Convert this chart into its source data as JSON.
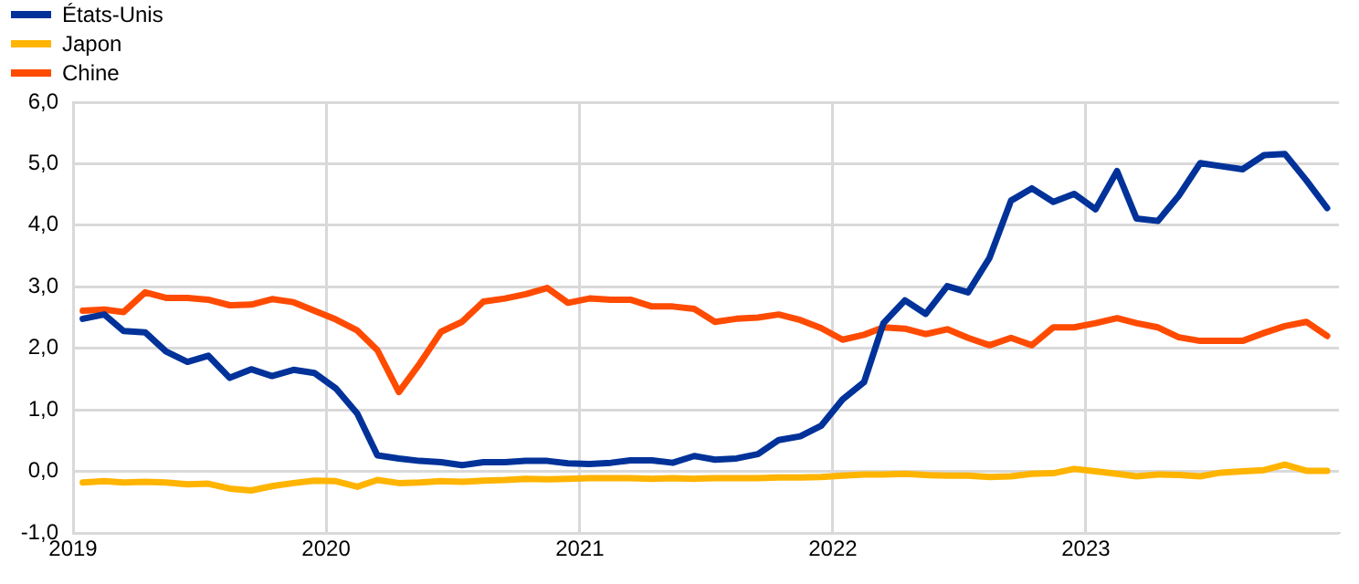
{
  "chart_data": {
    "type": "line",
    "x": [
      "2019-01-15",
      "2019-02-15",
      "2019-03-15",
      "2019-04-15",
      "2019-05-15",
      "2019-06-15",
      "2019-07-15",
      "2019-08-15",
      "2019-09-15",
      "2019-10-15",
      "2019-11-15",
      "2019-12-15",
      "2020-01-15",
      "2020-02-15",
      "2020-03-15",
      "2020-04-15",
      "2020-05-15",
      "2020-06-15",
      "2020-07-15",
      "2020-08-15",
      "2020-09-15",
      "2020-10-15",
      "2020-11-15",
      "2020-12-15",
      "2021-01-15",
      "2021-02-15",
      "2021-03-15",
      "2021-04-15",
      "2021-05-15",
      "2021-06-15",
      "2021-07-15",
      "2021-08-15",
      "2021-09-15",
      "2021-10-15",
      "2021-11-15",
      "2021-12-15",
      "2022-01-15",
      "2022-02-15",
      "2022-03-15",
      "2022-04-15",
      "2022-05-15",
      "2022-06-15",
      "2022-07-15",
      "2022-08-15",
      "2022-09-15",
      "2022-10-15",
      "2022-11-15",
      "2022-12-15",
      "2023-01-15",
      "2023-02-15",
      "2023-03-15",
      "2023-04-15",
      "2023-05-15",
      "2023-06-15",
      "2023-07-15",
      "2023-08-15",
      "2023-09-15",
      "2023-10-15",
      "2023-11-15",
      "2023-12-15"
    ],
    "series": [
      {
        "name": "États-Unis",
        "color": "#003299",
        "values": [
          2.48,
          2.55,
          2.28,
          2.26,
          1.95,
          1.78,
          1.88,
          1.52,
          1.66,
          1.55,
          1.65,
          1.6,
          1.35,
          0.94,
          0.26,
          0.21,
          0.17,
          0.15,
          0.1,
          0.15,
          0.15,
          0.17,
          0.17,
          0.13,
          0.12,
          0.14,
          0.18,
          0.18,
          0.14,
          0.25,
          0.19,
          0.21,
          0.28,
          0.51,
          0.57,
          0.74,
          1.17,
          1.45,
          2.41,
          2.78,
          2.56,
          3.01,
          2.91,
          3.47,
          4.4,
          4.6,
          4.38,
          4.51,
          4.26,
          4.88,
          4.11,
          4.07,
          4.48,
          5.01,
          4.96,
          4.91,
          5.14,
          5.16,
          4.73,
          4.28
        ]
      },
      {
        "name": "Japon",
        "color": "#ffb400",
        "values": [
          -0.18,
          -0.16,
          -0.18,
          -0.17,
          -0.18,
          -0.21,
          -0.2,
          -0.28,
          -0.31,
          -0.24,
          -0.19,
          -0.15,
          -0.16,
          -0.25,
          -0.14,
          -0.19,
          -0.18,
          -0.16,
          -0.17,
          -0.15,
          -0.14,
          -0.12,
          -0.13,
          -0.12,
          -0.11,
          -0.11,
          -0.11,
          -0.12,
          -0.11,
          -0.12,
          -0.11,
          -0.11,
          -0.11,
          -0.1,
          -0.1,
          -0.09,
          -0.07,
          -0.05,
          -0.05,
          -0.04,
          -0.06,
          -0.07,
          -0.07,
          -0.09,
          -0.08,
          -0.04,
          -0.03,
          0.04,
          0.0,
          -0.04,
          -0.08,
          -0.05,
          -0.06,
          -0.08,
          -0.02,
          0.0,
          0.02,
          0.11,
          0.01,
          0.01
        ]
      },
      {
        "name": "Chine",
        "color": "#ff4b00",
        "values": [
          2.61,
          2.63,
          2.59,
          2.91,
          2.82,
          2.82,
          2.79,
          2.7,
          2.71,
          2.8,
          2.75,
          2.61,
          2.47,
          2.29,
          1.97,
          1.29,
          1.75,
          2.27,
          2.43,
          2.76,
          2.81,
          2.88,
          2.98,
          2.74,
          2.81,
          2.79,
          2.79,
          2.68,
          2.68,
          2.64,
          2.43,
          2.48,
          2.5,
          2.55,
          2.46,
          2.33,
          2.14,
          2.22,
          2.34,
          2.32,
          2.23,
          2.31,
          2.17,
          2.05,
          2.17,
          2.05,
          2.34,
          2.34,
          2.41,
          2.49,
          2.41,
          2.34,
          2.18,
          2.12,
          2.12,
          2.12,
          2.25,
          2.36,
          2.43,
          2.2
        ]
      }
    ],
    "xlim": [
      "2019",
      "2024"
    ],
    "xticks": [
      "2019",
      "2020",
      "2021",
      "2022",
      "2023"
    ],
    "ylim": [
      -1,
      6
    ],
    "yticks": [
      {
        "value": -1,
        "label": "-1,0"
      },
      {
        "value": 0,
        "label": "0,0"
      },
      {
        "value": 1,
        "label": "1,0"
      },
      {
        "value": 2,
        "label": "2,0"
      },
      {
        "value": 3,
        "label": "3,0"
      },
      {
        "value": 4,
        "label": "4,0"
      },
      {
        "value": 5,
        "label": "5,0"
      },
      {
        "value": 6,
        "label": "6,0"
      }
    ],
    "grid": true,
    "legend": "top left",
    "marker": "none",
    "line_style": "solid"
  }
}
